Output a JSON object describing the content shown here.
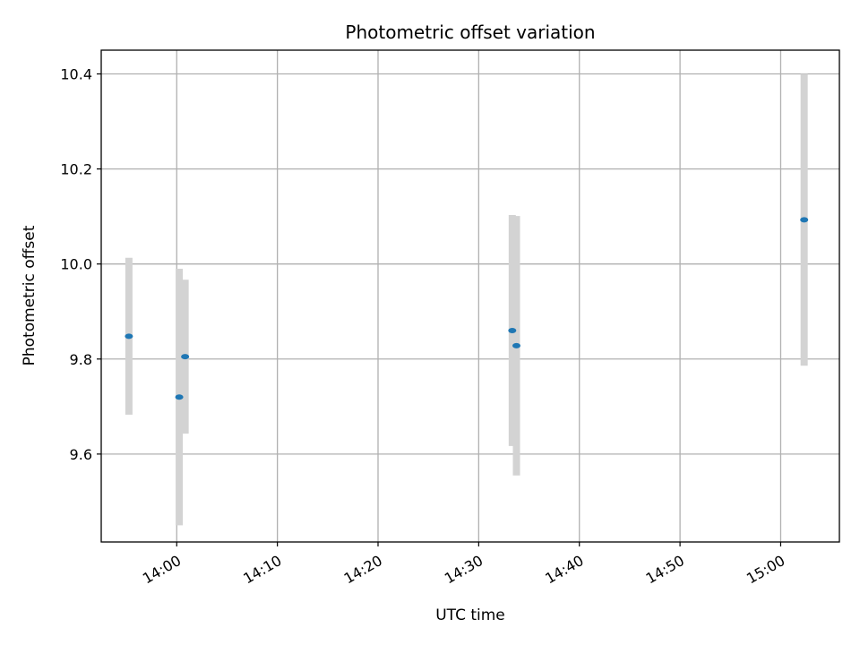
{
  "chart_data": {
    "type": "scatter",
    "title": "Photometric offset variation",
    "xlabel": "UTC time",
    "ylabel": "Photometric offset",
    "xlim": [
      "13:52:30",
      "15:05:50"
    ],
    "ylim": [
      9.415,
      10.45
    ],
    "grid": true,
    "x_ticks": [
      "14:00",
      "14:10",
      "14:20",
      "14:30",
      "14:40",
      "14:50",
      "15:00"
    ],
    "y_ticks": [
      "9.6",
      "9.8",
      "10.0",
      "10.2",
      "10.4"
    ],
    "series": [
      {
        "marker_color": "#1f77b4",
        "errorbar_color": "#d3d3d3",
        "points": [
          {
            "x": "13:55:15",
            "y": 9.848,
            "err": 0.165
          },
          {
            "x": "14:00:15",
            "y": 9.72,
            "err": 0.27
          },
          {
            "x": "14:00:50",
            "y": 9.805,
            "err": 0.162
          },
          {
            "x": "14:33:20",
            "y": 9.86,
            "err": 0.243
          },
          {
            "x": "14:33:45",
            "y": 9.828,
            "err": 0.273
          },
          {
            "x": "15:02:20",
            "y": 10.093,
            "err": 0.307
          }
        ]
      }
    ]
  }
}
